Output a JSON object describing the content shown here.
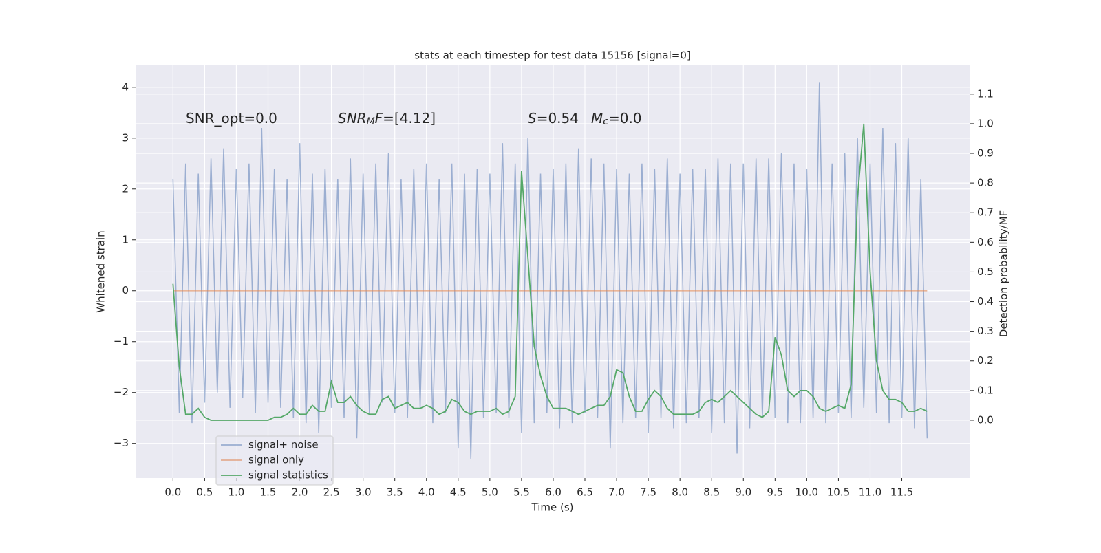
{
  "chart_data": {
    "type": "line",
    "title": "stats at each timestep for test data 15156 [signal=0]",
    "x_label": "Time (s)",
    "y_label": "Whitened strain",
    "y2_label": "Detection probability/MF",
    "xlim": [
      -0.59,
      12.58
    ],
    "ylim": [
      -3.68,
      4.43
    ],
    "y2lim": [
      -0.195,
      1.197
    ],
    "xticks": [
      {
        "value": 0,
        "label": "0.0"
      },
      0.5,
      {
        "value": 1,
        "label": "1.0"
      },
      1.5,
      {
        "value": 2,
        "label": "2.0"
      },
      2.5,
      {
        "value": 3,
        "label": "3.0"
      },
      3.5,
      {
        "value": 4,
        "label": "4.0"
      },
      4.5,
      {
        "value": 5,
        "label": "5.0"
      },
      5.5,
      {
        "value": 6,
        "label": "6.0"
      },
      6.5,
      {
        "value": 7,
        "label": "7.0"
      },
      7.5,
      {
        "value": 8,
        "label": "8.0"
      },
      8.5,
      {
        "value": 9,
        "label": "9.0"
      },
      9.5,
      {
        "value": 10,
        "label": "10.0"
      },
      10.5,
      {
        "value": 11,
        "label": "11.0"
      },
      11.5
    ],
    "yticks": [
      {
        "value": -3,
        "label": "−3"
      },
      {
        "value": -2,
        "label": "−2"
      },
      {
        "value": -1,
        "label": "−1"
      },
      0,
      1,
      2,
      3,
      4
    ],
    "y2ticks": [
      {
        "value": 0,
        "label": "0.0"
      },
      0.1,
      0.2,
      0.3,
      0.4,
      0.5,
      0.6,
      0.7,
      0.8,
      0.9,
      {
        "value": 1,
        "label": "1.0"
      },
      1.1
    ],
    "grid": true,
    "legend": "lower left",
    "x": [
      0,
      0.1,
      0.2,
      0.3,
      0.4,
      0.5,
      0.6,
      0.7,
      0.8,
      0.9,
      1,
      1.1,
      1.2,
      1.3,
      1.4,
      1.5,
      1.6,
      1.7,
      1.8,
      1.9,
      2,
      2.1,
      2.2,
      2.3,
      2.4,
      2.5,
      2.6,
      2.7,
      2.8,
      2.9,
      3,
      3.1,
      3.2,
      3.3,
      3.4,
      3.5,
      3.6,
      3.7,
      3.8,
      3.9,
      4,
      4.1,
      4.2,
      4.3,
      4.4,
      4.5,
      4.6,
      4.7,
      4.8,
      4.9,
      5,
      5.1,
      5.2,
      5.3,
      5.4,
      5.5,
      5.6,
      5.7,
      5.8,
      5.9,
      6,
      6.1,
      6.2,
      6.3,
      6.4,
      6.5,
      6.6,
      6.7,
      6.8,
      6.9,
      7,
      7.1,
      7.2,
      7.3,
      7.4,
      7.5,
      7.6,
      7.7,
      7.8,
      7.9,
      8,
      8.1,
      8.2,
      8.3,
      8.4,
      8.5,
      8.6,
      8.7,
      8.8,
      8.9,
      9,
      9.1,
      9.2,
      9.3,
      9.4,
      9.5,
      9.6,
      9.7,
      9.8,
      9.9,
      10,
      10.1,
      10.2,
      10.3,
      10.4,
      10.5,
      10.6,
      10.7,
      10.8,
      10.9,
      11,
      11.1,
      11.2,
      11.3,
      11.4,
      11.5,
      11.6,
      11.7,
      11.8,
      11.9
    ],
    "series": [
      {
        "name": "signal+ noise",
        "color": "#4c72b0",
        "opacity": 0.5,
        "values": [
          2.2,
          -2.4,
          2.5,
          -2.6,
          2.3,
          -2.2,
          2.6,
          -2.0,
          2.8,
          -2.3,
          2.4,
          -2.1,
          2.5,
          -2.4,
          3.2,
          -2.2,
          2.4,
          -2.3,
          2.2,
          -2.5,
          2.9,
          -2.6,
          2.3,
          -2.8,
          2.4,
          -2.3,
          2.2,
          -2.5,
          2.6,
          -2.9,
          2.3,
          -2.4,
          2.5,
          -2.2,
          2.7,
          -2.4,
          2.2,
          -2.5,
          2.4,
          -2.3,
          2.5,
          -2.6,
          2.2,
          -2.4,
          2.5,
          -3.1,
          2.3,
          -3.3,
          2.4,
          -2.5,
          2.3,
          -2.4,
          2.9,
          -2.5,
          2.5,
          -2.8,
          3.0,
          -2.6,
          2.3,
          -2.4,
          2.4,
          -2.7,
          2.5,
          -2.6,
          2.8,
          -2.4,
          2.6,
          -2.5,
          2.5,
          -3.1,
          2.4,
          -2.6,
          2.3,
          -2.5,
          2.5,
          -2.8,
          2.4,
          -2.5,
          2.6,
          -2.7,
          2.3,
          -2.6,
          2.4,
          -2.5,
          2.4,
          -2.8,
          2.6,
          -2.6,
          2.5,
          -3.2,
          2.5,
          -2.7,
          2.6,
          -2.5,
          2.6,
          -2.5,
          2.7,
          -2.6,
          2.5,
          -2.6,
          2.4,
          -2.5,
          4.1,
          -2.6,
          2.5,
          -2.4,
          2.7,
          -2.5,
          3.0,
          -2.3,
          2.5,
          -2.4,
          3.2,
          -2.6,
          2.9,
          -2.5,
          3.0,
          -2.7,
          2.2,
          -2.9
        ]
      },
      {
        "name": "signal only",
        "color": "#dd8452",
        "opacity": 0.6,
        "values": [
          0,
          0,
          0,
          0,
          0,
          0,
          0,
          0,
          0,
          0,
          0,
          0,
          0,
          0,
          0,
          0,
          0,
          0,
          0,
          0,
          0,
          0,
          0,
          0,
          0,
          0,
          0,
          0,
          0,
          0,
          0,
          0,
          0,
          0,
          0,
          0,
          0,
          0,
          0,
          0,
          0,
          0,
          0,
          0,
          0,
          0,
          0,
          0,
          0,
          0,
          0,
          0,
          0,
          0,
          0,
          0,
          0,
          0,
          0,
          0,
          0,
          0,
          0,
          0,
          0,
          0,
          0,
          0,
          0,
          0,
          0,
          0,
          0,
          0,
          0,
          0,
          0,
          0,
          0,
          0,
          0,
          0,
          0,
          0,
          0,
          0,
          0,
          0,
          0,
          0,
          0,
          0,
          0,
          0,
          0,
          0,
          0,
          0,
          0,
          0,
          0,
          0,
          0,
          0,
          0,
          0,
          0,
          0,
          0,
          0,
          0,
          0,
          0,
          0,
          0,
          0,
          0,
          0,
          0,
          0
        ]
      },
      {
        "name": "signal statistics",
        "color": "#55a868",
        "opacity": 1,
        "axis": "y2",
        "values": [
          0.46,
          0.18,
          0.02,
          0.02,
          0.04,
          0.01,
          0,
          0,
          0,
          0,
          0,
          0,
          0,
          0,
          0,
          0,
          0.01,
          0.01,
          0.02,
          0.04,
          0.02,
          0.02,
          0.05,
          0.03,
          0.03,
          0.13,
          0.06,
          0.06,
          0.08,
          0.05,
          0.03,
          0.02,
          0.02,
          0.07,
          0.08,
          0.04,
          0.05,
          0.06,
          0.04,
          0.04,
          0.05,
          0.04,
          0.02,
          0.03,
          0.07,
          0.06,
          0.03,
          0.02,
          0.03,
          0.03,
          0.03,
          0.04,
          0.02,
          0.03,
          0.08,
          0.84,
          0.55,
          0.25,
          0.15,
          0.08,
          0.04,
          0.04,
          0.04,
          0.03,
          0.02,
          0.03,
          0.04,
          0.05,
          0.05,
          0.08,
          0.17,
          0.16,
          0.08,
          0.03,
          0.03,
          0.07,
          0.1,
          0.08,
          0.04,
          0.02,
          0.02,
          0.02,
          0.02,
          0.03,
          0.06,
          0.07,
          0.06,
          0.08,
          0.1,
          0.08,
          0.06,
          0.04,
          0.02,
          0.01,
          0.03,
          0.28,
          0.22,
          0.1,
          0.08,
          0.1,
          0.1,
          0.08,
          0.04,
          0.03,
          0.04,
          0.05,
          0.04,
          0.12,
          0.75,
          1.0,
          0.5,
          0.2,
          0.1,
          0.07,
          0.07,
          0.06,
          0.03,
          0.03,
          0.04,
          0.03
        ]
      }
    ],
    "annotations": [
      [
        {
          "text": "SNR_opt=0.0"
        }
      ],
      [
        {
          "text": "SNR",
          "italic": true
        },
        {
          "text": "M",
          "italic": true,
          "sub": true
        },
        {
          "text": "F",
          "italic": true
        },
        {
          "text": "=[4.12]"
        }
      ],
      [
        {
          "text": "S",
          "italic": true
        },
        {
          "text": "=0.54"
        }
      ],
      [
        {
          "text": "M",
          "italic": true
        },
        {
          "text": "c",
          "italic": true,
          "sub": true
        },
        {
          "text": "=0.0"
        }
      ]
    ]
  }
}
